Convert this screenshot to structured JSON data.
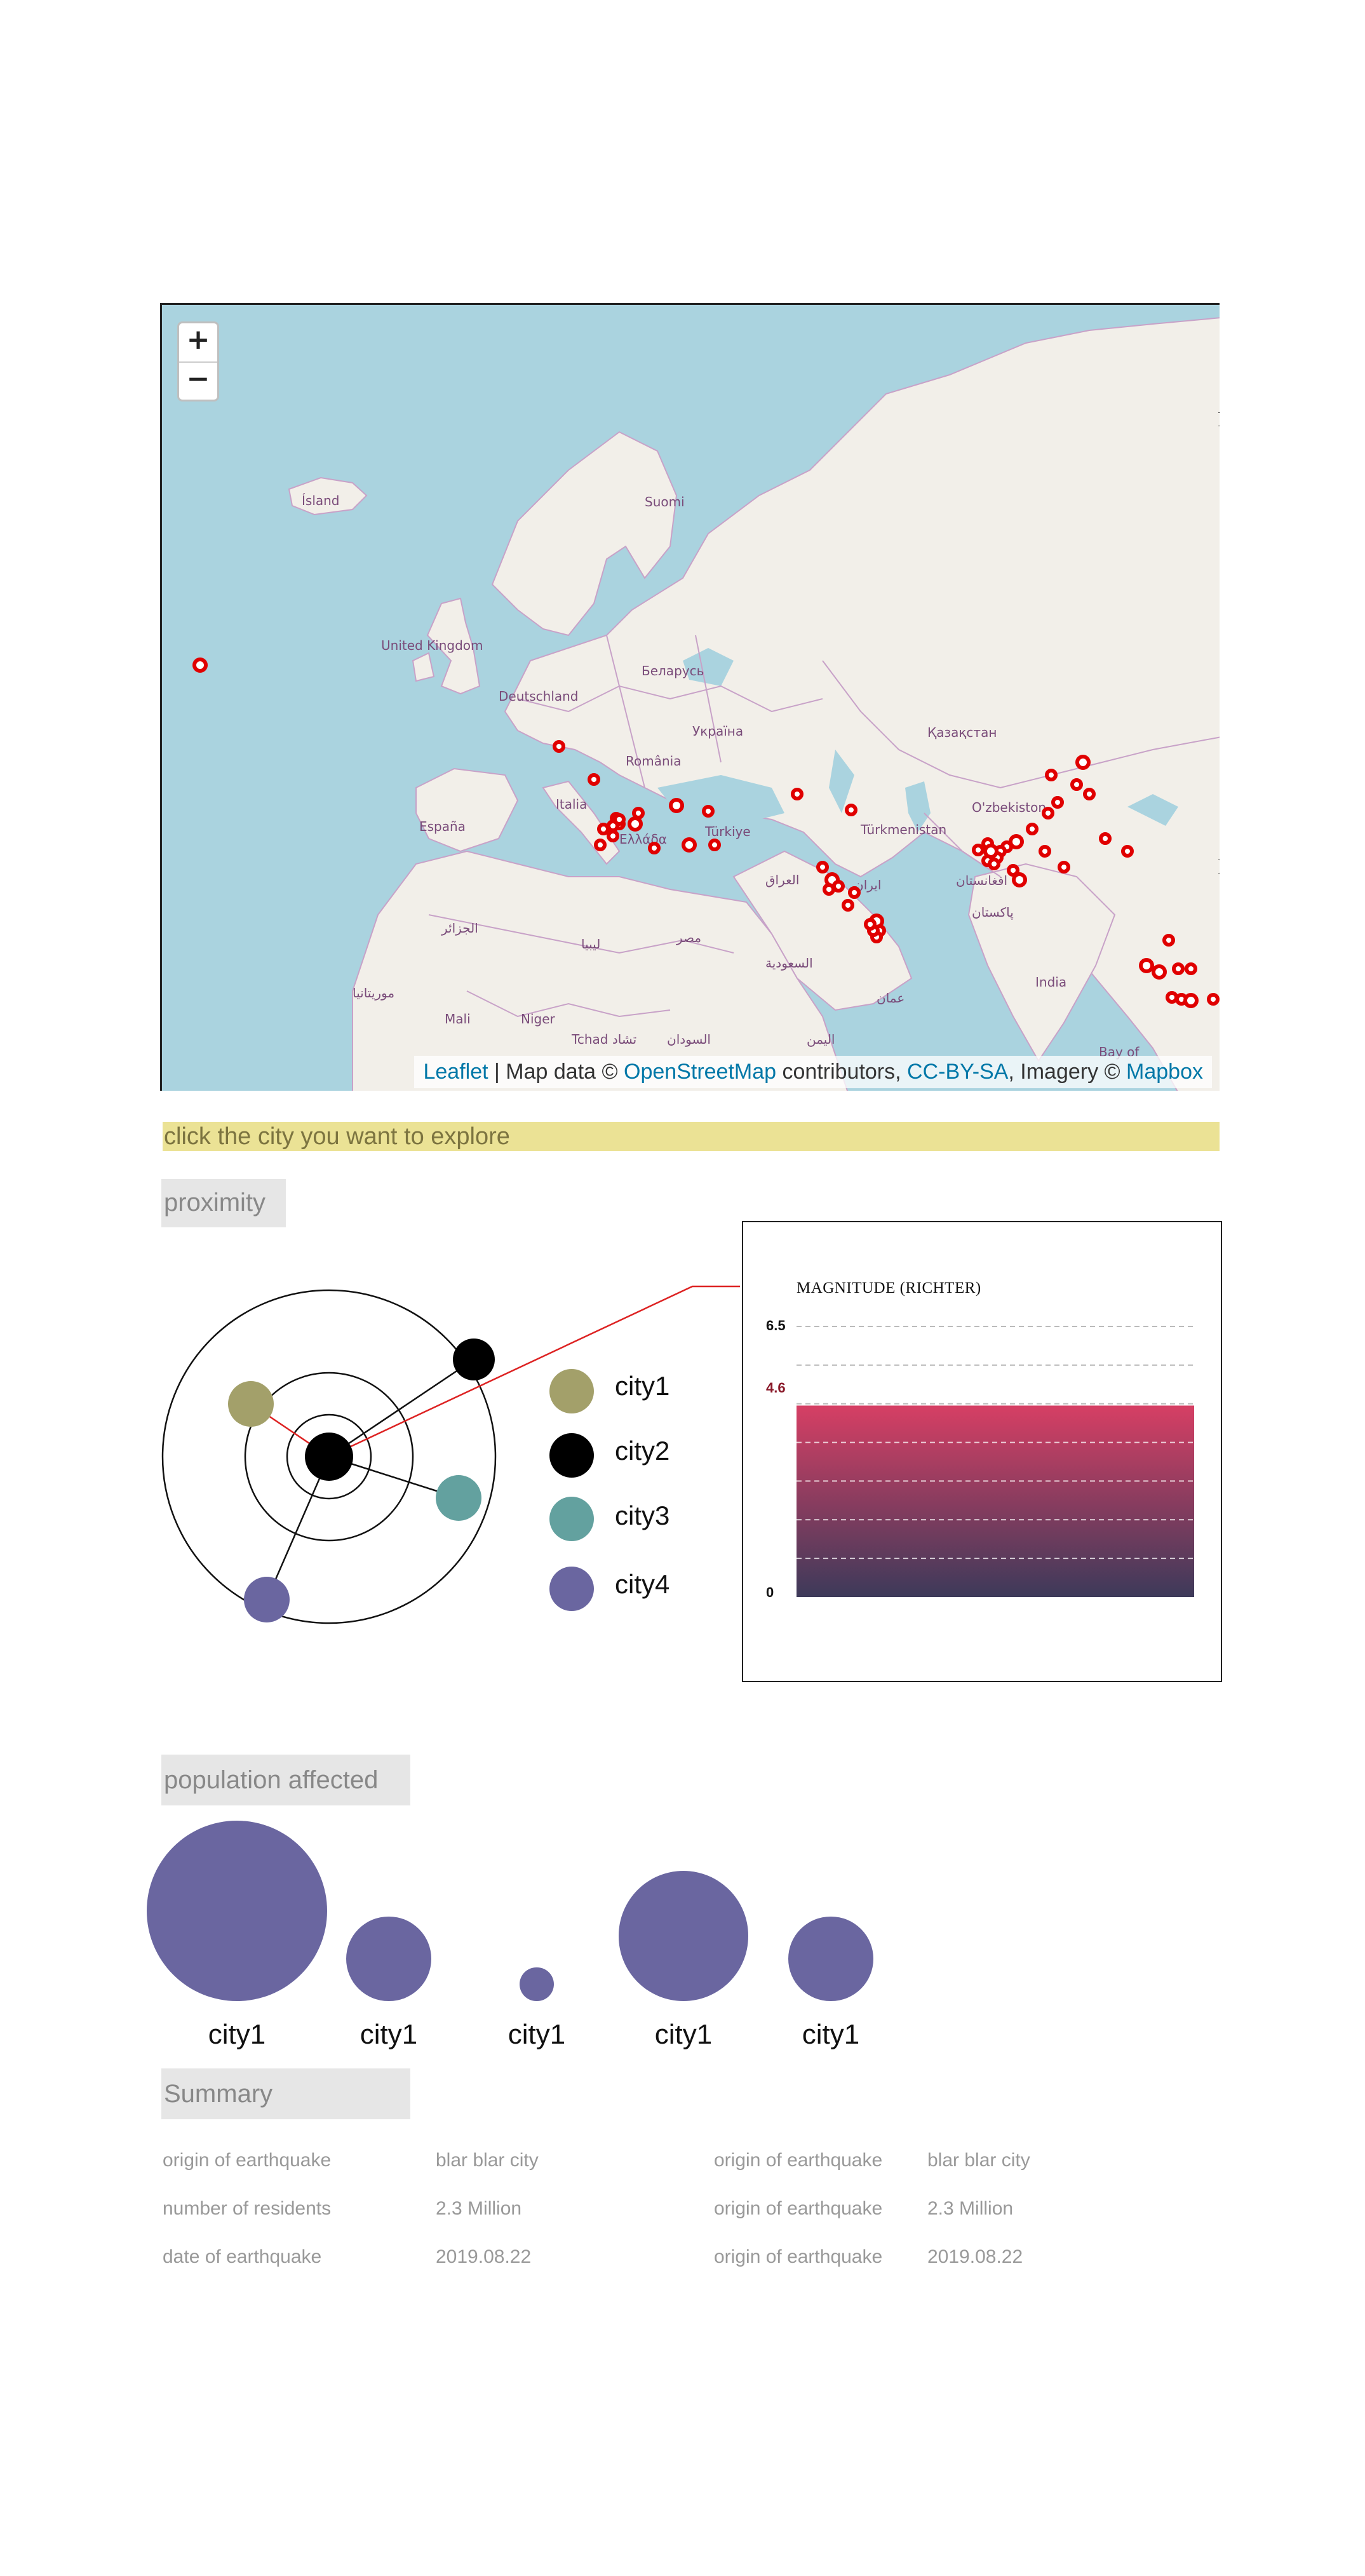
{
  "map": {
    "zoom_in": "+",
    "zoom_out": "−",
    "attribution": {
      "leaflet": "Leaflet",
      "map_data": " | Map data © ",
      "osm": "OpenStreetMap",
      "contributors": " contributors, ",
      "license": "CC-BY-SA",
      "imagery": ", Imagery © ",
      "mapbox": "Mapbox"
    },
    "labels": [
      "Ísland",
      "Suomi",
      "United Kingdom",
      "Deutschland",
      "Беларусь",
      "Україна",
      "Қазақстан",
      "România",
      "Italia",
      "España",
      "Türkiye",
      "O'zbekiston",
      "Türkmenistan",
      "Ελλάδα",
      "العراق",
      "ایران",
      "افغانستان",
      "پاکستان",
      "الجزائر",
      "ليبيا",
      "مصر",
      "السعودية",
      "موريتانيا",
      "Mali",
      "Niger",
      "Tchad تشاد",
      "السودان",
      "عمان",
      "اليمن",
      "India",
      "Bay of"
    ],
    "edge_glyphs": [
      "S",
      "I",
      "I"
    ],
    "marker_color": "#e00000"
  },
  "banner": {
    "text": "click the city you want to explore"
  },
  "proximity": {
    "title": "proximity",
    "legend": [
      {
        "label": "city1",
        "color": "#a3a06a"
      },
      {
        "label": "city2",
        "color": "#000000"
      },
      {
        "label": "city3",
        "color": "#63a19f"
      },
      {
        "label": "city4",
        "color": "#6a66a0"
      }
    ]
  },
  "magnitude": {
    "title": "MAGNITUDE (RICHTER)",
    "ticks": [
      "6.5",
      "4.6",
      "0"
    ],
    "value": 4.6,
    "max": 6.5,
    "gradient_top": "#d63f64",
    "gradient_bottom": "#3d3a5a"
  },
  "population": {
    "title": "population affected",
    "bubbles": [
      {
        "label": "city1",
        "value": 100
      },
      {
        "label": "city1",
        "value": 22
      },
      {
        "label": "city1",
        "value": 3.5
      },
      {
        "label": "city1",
        "value": 52
      },
      {
        "label": "city1",
        "value": 22
      }
    ],
    "color": "#6a66a0"
  },
  "summary": {
    "title": "Summary",
    "left": [
      {
        "label": "origin of earthquake",
        "value": "blar blar city"
      },
      {
        "label": "number of residents",
        "value": "2.3 Million"
      },
      {
        "label": "date of earthquake",
        "value": "2019.08.22"
      }
    ],
    "right": [
      {
        "label": "origin of earthquake",
        "value": "blar blar city"
      },
      {
        "label": "origin of earthquake",
        "value": "2.3 Million"
      },
      {
        "label": "origin of earthquake",
        "value": "2019.08.22"
      }
    ]
  }
}
